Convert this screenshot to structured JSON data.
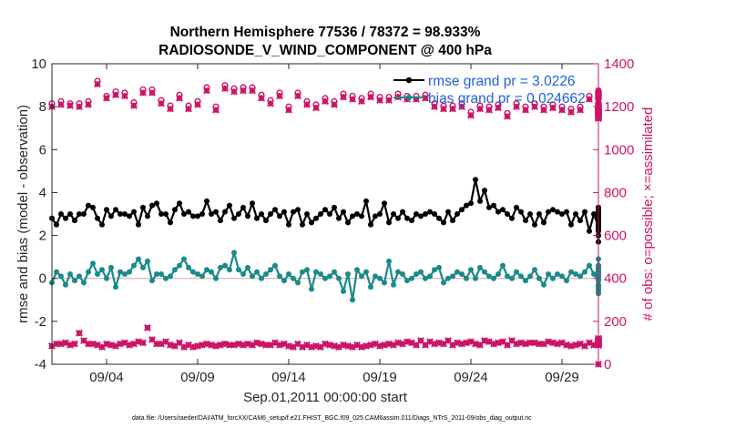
{
  "chart_data": {
    "type": "line",
    "title_line1": "Northern Hemisphere 77536 / 78372 = 98.933%",
    "title_line2": "RADIOSONDE_V_WIND_COMPONENT @ 400 hPa",
    "xlabel": "Sep.01,2011 00:00:00 start",
    "ylabel_left": "rmse and bias (model - observation)",
    "ylabel_right": "# of obs: o=possible; ×=assimilated",
    "footnote": "data file: /Users/raeder/DAI/ATM_forcXX/CAM6_setup/f.e21.FHIST_BGC.f09_025.CAM6assim.011/Diags_NTrS_2011-09/obs_diag_output.nc",
    "xlim": [
      0,
      30
    ],
    "ylim_left": [
      -4,
      10
    ],
    "ylim_right": [
      0,
      1400
    ],
    "xticks": [
      3,
      8,
      13,
      18,
      23,
      28
    ],
    "xtick_labels": [
      "09/04",
      "09/09",
      "09/14",
      "09/19",
      "09/24",
      "09/29"
    ],
    "yticks_left": [
      -4,
      -2,
      0,
      2,
      4,
      6,
      8,
      10
    ],
    "yticks_right": [
      0,
      200,
      400,
      600,
      800,
      1000,
      1200,
      1400
    ],
    "legend": {
      "location": "top-right",
      "entries": [
        "rmse grand pr = 3.0226",
        "bias grand pr = 0.024662"
      ]
    },
    "colors": {
      "rmse": "#000000",
      "bias": "#1a8a8a",
      "obs": "#cc1466",
      "zero_line": "#d9a0a0",
      "axis": "#262626",
      "legend_text": "#1f5fe0"
    },
    "series": [
      {
        "name": "rmse",
        "axis": "left",
        "step": 0.25,
        "values": [
          2.8,
          2.5,
          3.0,
          2.8,
          3.0,
          2.7,
          3.0,
          3.0,
          3.4,
          3.3,
          2.8,
          2.5,
          3.2,
          2.9,
          3.2,
          3.0,
          3.0,
          2.9,
          3.1,
          2.5,
          3.3,
          2.9,
          3.4,
          3.5,
          3.0,
          3.0,
          2.6,
          3.2,
          3.5,
          3.0,
          3.1,
          2.9,
          2.9,
          3.0,
          3.6,
          3.0,
          3.1,
          2.7,
          3.1,
          3.4,
          2.8,
          3.0,
          3.3,
          2.9,
          3.5,
          2.8,
          3.0,
          2.7,
          3.0,
          3.2,
          2.9,
          3.1,
          2.5,
          3.1,
          3.2,
          2.5,
          3.0,
          2.6,
          2.8,
          3.0,
          3.2,
          3.0,
          3.3,
          2.8,
          3.1,
          2.6,
          2.9,
          3.0,
          2.9,
          3.6,
          2.5,
          2.9,
          3.0,
          3.5,
          2.6,
          3.0,
          2.8,
          3.1,
          2.8,
          2.7,
          3.0,
          2.9,
          3.0,
          3.1,
          3.0,
          2.8,
          2.6,
          3.1,
          2.7,
          3.0,
          3.2,
          3.4,
          3.5,
          4.6,
          3.6,
          4.1,
          3.3,
          3.4,
          3.1,
          3.2,
          3.0,
          2.8,
          3.3,
          3.1,
          2.7,
          3.0,
          2.5,
          3.0,
          2.6,
          3.1,
          3.2,
          3.1,
          3.0,
          3.1,
          2.5,
          3.0,
          2.7,
          3.1,
          2.2,
          3.0,
          2.4,
          2.0,
          2.9,
          1.7,
          2.7,
          2.3,
          2.0,
          2.9,
          3.0,
          2.7,
          2.6,
          3.0,
          2.4,
          2.9,
          2.2,
          2.6,
          3.0,
          2.4,
          3.0,
          2.5,
          2.9,
          3.2,
          3.0,
          2.8,
          2.7,
          2.4,
          2.9,
          2.5,
          3.2,
          2.9,
          2.5,
          2.9,
          3.0,
          3.1,
          2.7,
          3.0,
          2.9,
          2.4,
          3.0,
          2.8,
          3.3,
          2.6,
          3.1,
          2.7,
          2.7,
          3.0,
          2.6,
          3.0,
          3.0,
          2.5,
          3.3,
          2.7,
          2.4,
          3.3,
          2.3,
          2.8,
          2.4,
          2.4
        ]
      },
      {
        "name": "bias",
        "axis": "left",
        "step": 0.25,
        "values": [
          -0.2,
          0.3,
          0.1,
          -0.3,
          0.2,
          -0.1,
          0.1,
          -0.2,
          0.3,
          0.7,
          0.2,
          0.4,
          0.0,
          0.5,
          -0.4,
          0.3,
          0.2,
          0.3,
          0.6,
          0.9,
          0.5,
          0.8,
          -0.1,
          0.2,
          0.2,
          0.0,
          0.1,
          0.4,
          0.6,
          0.9,
          0.5,
          0.3,
          0.2,
          0.1,
          0.4,
          0.3,
          0.0,
          0.5,
          0.6,
          0.4,
          1.2,
          0.4,
          0.2,
          0.5,
          0.1,
          0.3,
          0.0,
          0.2,
          0.4,
          0.6,
          0.1,
          -0.1,
          0.2,
          0.0,
          -0.2,
          0.3,
          0.4,
          -0.5,
          0.3,
          0.2,
          0.0,
          0.1,
          0.3,
          0.0,
          -0.6,
          0.2,
          -1.0,
          0.4,
          0.1,
          0.3,
          -0.4,
          0.1,
          0.0,
          -0.2,
          0.8,
          -0.3,
          0.3,
          0.2,
          -0.1,
          0.0,
          0.2,
          0.3,
          0.0,
          0.1,
          0.4,
          0.5,
          -0.2,
          0.0,
          0.1,
          0.3,
          0.2,
          0.0,
          0.4,
          0.0,
          0.5,
          0.3,
          0.1,
          0.0,
          0.2,
          0.6,
          0.1,
          0.0,
          0.3,
          0.1,
          -0.1,
          0.1,
          0.4,
          0.0,
          -0.3,
          0.2,
          0.0,
          0.2,
          0.1,
          -0.1,
          0.3,
          0.2,
          0.1,
          0.3,
          0.6,
          0.2,
          -0.1,
          0.3,
          0.5,
          0.2,
          0.4,
          0.1,
          0.5,
          0.9,
          0.2,
          0.2,
          0.6,
          0.4,
          0.3,
          0.2,
          -0.3,
          0.2,
          0.1,
          0.6,
          0.3,
          0.0,
          0.2,
          0.1,
          0.4,
          0.2,
          0.5,
          0.0,
          -0.7,
          0.2,
          0.3,
          0.0,
          0.5,
          0.2,
          0.1,
          -0.5,
          0.1,
          0.3,
          -0.4,
          0.0,
          0.2,
          0.1,
          0.4,
          0.0,
          0.2,
          0.1,
          0.3,
          0.0,
          -0.6,
          0.1,
          0.3,
          0.1,
          0.0,
          0.4,
          0.1,
          0.0,
          -0.3,
          0.2
        ]
      },
      {
        "name": "obs_possible",
        "axis": "right",
        "step": 0.5,
        "values": [
          1215,
          1225,
          1215,
          1215,
          1225,
          1320,
          1250,
          1270,
          1265,
          1220,
          1280,
          1280,
          1230,
          1205,
          1255,
          1205,
          1225,
          1290,
          1200,
          1300,
          1285,
          1290,
          1290,
          1255,
          1230,
          1265,
          1200,
          1265,
          1225,
          1210,
          1240,
          1225,
          1260,
          1250,
          1240,
          1260,
          1245,
          1245,
          1260,
          1250,
          1250,
          1255,
          1215,
          1205,
          1205,
          1215,
          1175,
          1205,
          1200,
          1210,
          1170,
          1215,
          1200,
          1215,
          1200,
          1210,
          1200,
          1190,
          1200,
          1250,
          1200,
          1180,
          1210,
          1195,
          1275,
          1210,
          1180,
          1185,
          1180,
          1200,
          1210,
          1175,
          1270,
          1265,
          1260,
          1215,
          1175,
          1190,
          1175,
          1190,
          1220,
          1195,
          1205,
          1185,
          1175,
          1180,
          1185,
          1200,
          1190,
          1260,
          1265,
          1270,
          1180,
          1190,
          1170,
          1200,
          1205,
          1205,
          1215,
          1195,
          1170,
          1190,
          1205,
          1195,
          1180,
          1200,
          1195,
          1185,
          1190,
          1180,
          1170,
          1160,
          1195,
          1200,
          1210,
          1175,
          1165,
          1170,
          1180,
          1165
        ]
      },
      {
        "name": "obs_assimilated",
        "axis": "right",
        "step": 0.5,
        "values": [
          1200,
          1210,
          1205,
          1200,
          1210,
          1305,
          1240,
          1255,
          1250,
          1205,
          1265,
          1265,
          1215,
          1190,
          1240,
          1190,
          1210,
          1275,
          1185,
          1285,
          1270,
          1275,
          1275,
          1240,
          1215,
          1250,
          1185,
          1250,
          1210,
          1195,
          1225,
          1210,
          1245,
          1235,
          1225,
          1245,
          1230,
          1230,
          1245,
          1235,
          1235,
          1240,
          1200,
          1190,
          1190,
          1200,
          1160,
          1190,
          1185,
          1195,
          1155,
          1200,
          1185,
          1200,
          1185,
          1195,
          1185,
          1175,
          1185,
          1235,
          1185,
          1165,
          1195,
          1180,
          1260,
          1195,
          1165,
          1170,
          1165,
          1185,
          1195,
          1160,
          1255,
          1250,
          1245,
          1200,
          1160,
          1175,
          1160,
          1175,
          1205,
          1180,
          1190,
          1170,
          1160,
          1165,
          1170,
          1185,
          1175,
          1245,
          1250,
          1255,
          1165,
          1175,
          1155,
          1185,
          1190,
          1190,
          1200,
          1180,
          1155,
          1175,
          1190,
          1180,
          1165,
          1185,
          1180,
          1170,
          1175,
          1165,
          1155,
          1145,
          1180,
          1185,
          1195,
          1160,
          1150,
          1155,
          1165,
          1150
        ]
      },
      {
        "name": "obs_second",
        "axis": "right",
        "step": 0.25,
        "values": [
          85,
          95,
          95,
          100,
          90,
          95,
          145,
          110,
          95,
          95,
          90,
          80,
          95,
          90,
          85,
          95,
          100,
          90,
          95,
          105,
          100,
          170,
          115,
          95,
          95,
          105,
          90,
          85,
          100,
          80,
          90,
          80,
          85,
          90,
          95,
          90,
          85,
          90,
          95,
          90,
          90,
          95,
          90,
          95,
          90,
          100,
          95,
          90,
          90,
          100,
          90,
          95,
          85,
          80,
          95,
          80,
          90,
          80,
          85,
          80,
          95,
          90,
          85,
          80,
          90,
          85,
          80,
          90,
          80,
          85,
          90,
          95,
          85,
          90,
          95,
          90,
          100,
          95,
          105,
          100,
          90,
          110,
          90,
          105,
          95,
          100,
          95,
          110,
          90,
          100,
          95,
          100,
          105,
          95,
          90,
          110,
          105,
          95,
          100,
          105,
          90,
          110,
          95,
          100,
          95,
          100,
          100,
          95,
          95,
          105,
          100,
          95,
          100,
          90,
          85,
          90,
          95,
          85,
          100,
          90,
          110,
          95,
          90,
          100,
          110,
          95,
          110,
          90,
          120,
          105,
          100,
          110,
          95,
          100,
          110,
          100,
          95,
          90,
          100,
          95,
          100,
          105,
          90,
          110,
          100,
          90,
          95,
          100,
          105,
          100,
          95,
          100,
          95,
          110,
          100,
          90,
          105,
          95,
          100,
          115,
          100,
          95,
          100,
          90,
          95,
          105,
          100,
          90,
          105,
          100,
          95,
          100,
          105,
          90,
          100,
          95,
          100,
          95,
          90,
          0
        ]
      }
    ]
  }
}
